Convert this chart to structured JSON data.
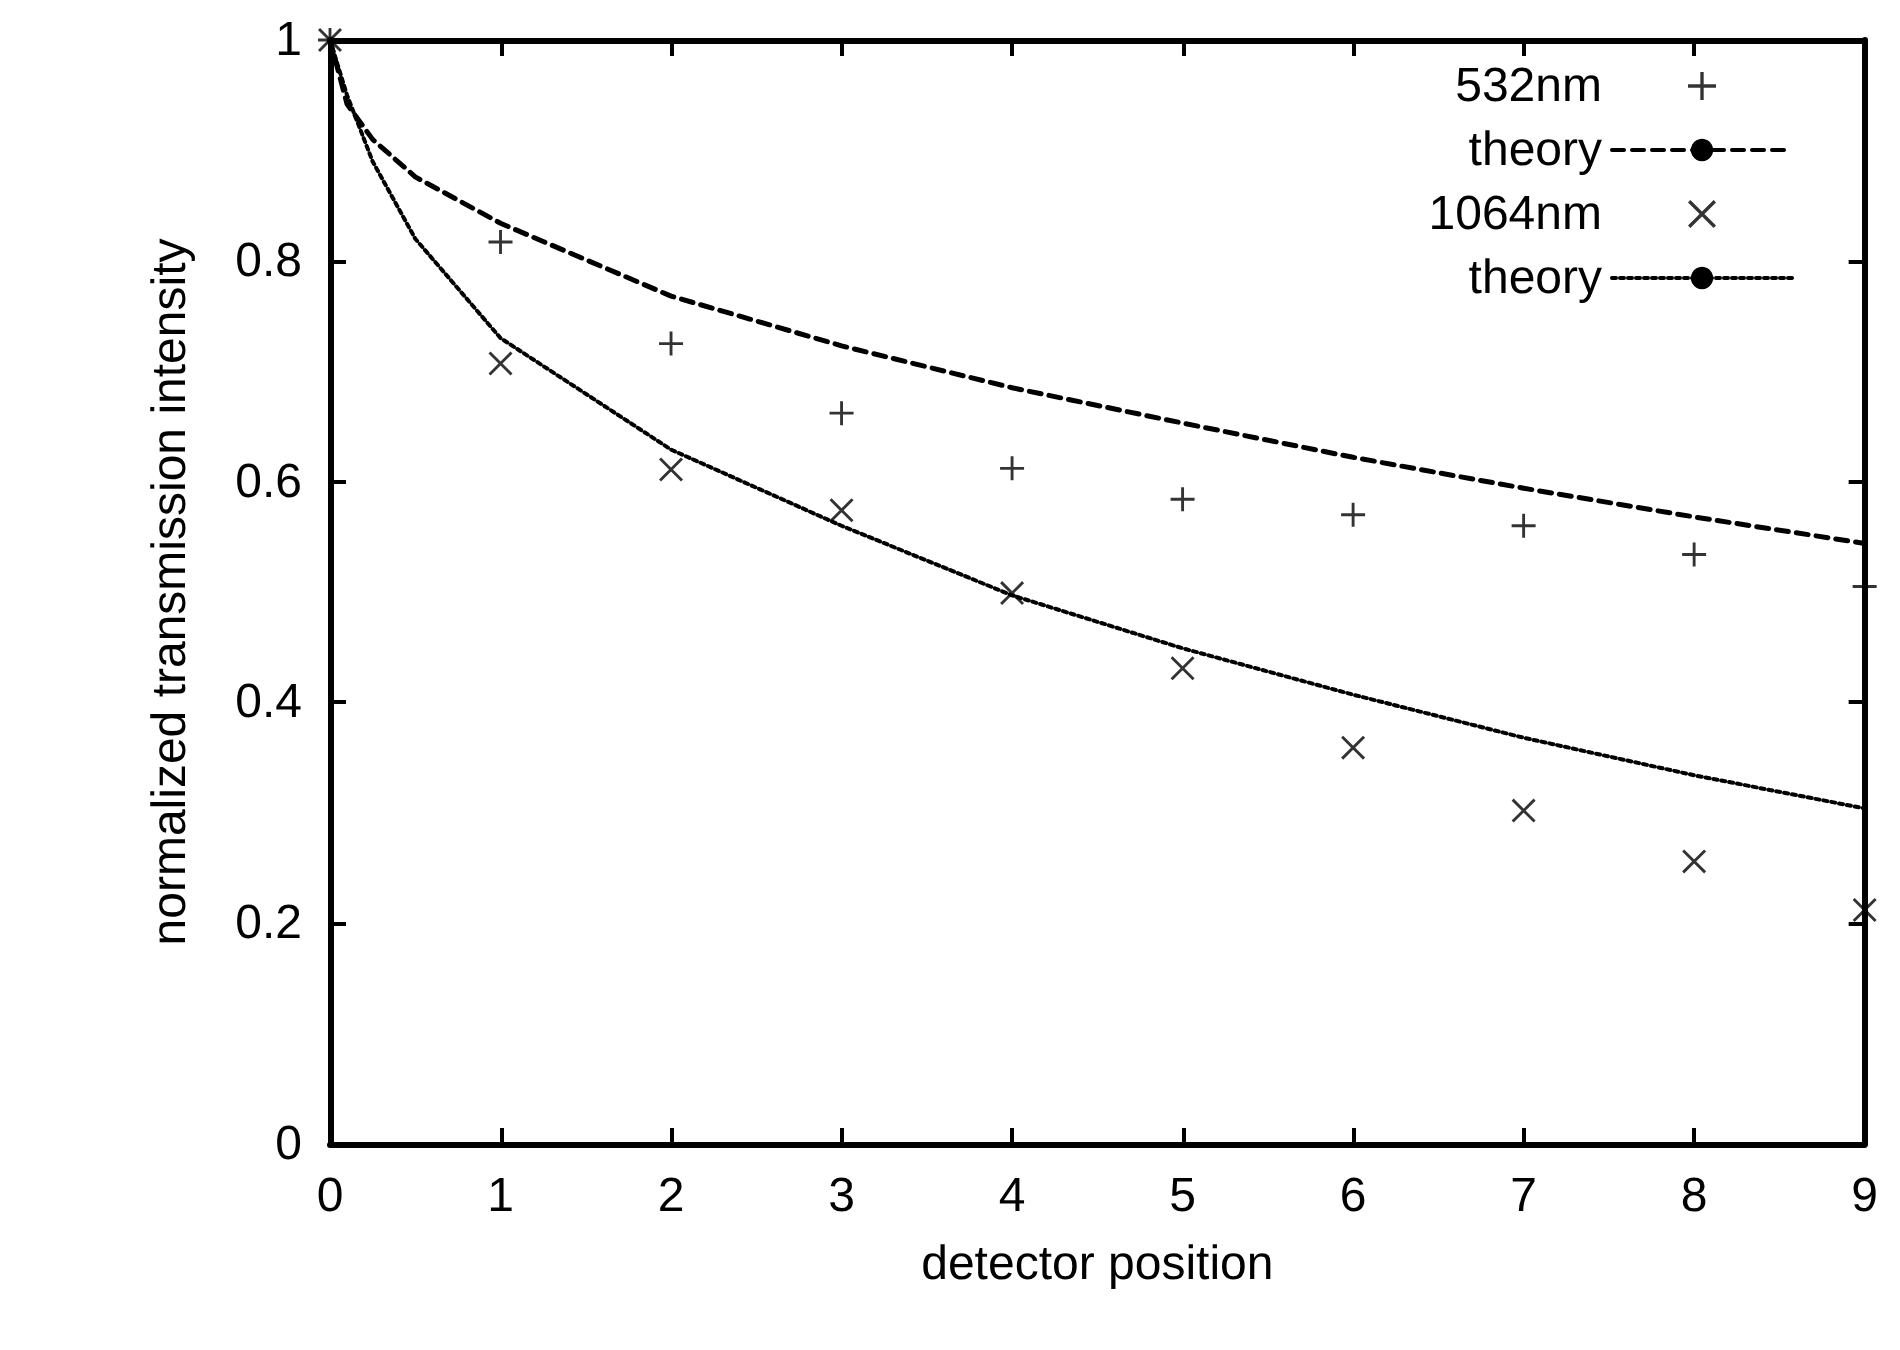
{
  "chart_data": {
    "type": "scatter",
    "xlabel": "detector position",
    "ylabel": "normalized transmission intensity",
    "xlim": [
      0,
      9
    ],
    "xticks": [
      0,
      1,
      2,
      3,
      4,
      5,
      6,
      7,
      8,
      9
    ],
    "ylim": [
      0,
      1
    ],
    "yticks": [
      0,
      0.2,
      0.4,
      0.6,
      0.8,
      1
    ],
    "grid": false,
    "legend": "top right",
    "series": [
      {
        "name": "532nm",
        "color": "#000000",
        "marker": "plus",
        "x": [
          0,
          1,
          2,
          3,
          4,
          5,
          6,
          7,
          8,
          9
        ],
        "values": [
          1,
          0.817,
          0.725,
          0.662,
          0.612,
          0.584,
          0.57,
          0.56,
          0.534,
          0.505
        ]
      },
      {
        "name": "theory",
        "type": "line",
        "color": "#000000",
        "line_style": "dashed",
        "marker": "none",
        "x": [
          0,
          0.1,
          0.25,
          0.5,
          1,
          2,
          3,
          4,
          5,
          6,
          7,
          8,
          9
        ],
        "values": [
          1,
          0.942,
          0.91,
          0.876,
          0.834,
          0.768,
          0.723,
          0.685,
          0.653,
          0.622,
          0.594,
          0.568,
          0.544
        ]
      },
      {
        "name": "1064nm",
        "color": "#000000",
        "marker": "cross",
        "x": [
          0,
          1,
          2,
          3,
          4,
          5,
          6,
          7,
          8,
          9
        ],
        "values": [
          1,
          0.707,
          0.611,
          0.574,
          0.499,
          0.431,
          0.359,
          0.302,
          0.256,
          0.212
        ]
      },
      {
        "name": "theory",
        "type": "line",
        "color": "#000000",
        "line_style": "dotted",
        "marker": "none",
        "x": [
          0,
          0.1,
          0.25,
          0.5,
          1,
          2,
          3,
          4,
          5,
          6,
          7,
          8,
          9
        ],
        "values": [
          1,
          0.95,
          0.89,
          0.82,
          0.73,
          0.629,
          0.56,
          0.497,
          0.449,
          0.407,
          0.368,
          0.334,
          0.304
        ]
      }
    ]
  }
}
